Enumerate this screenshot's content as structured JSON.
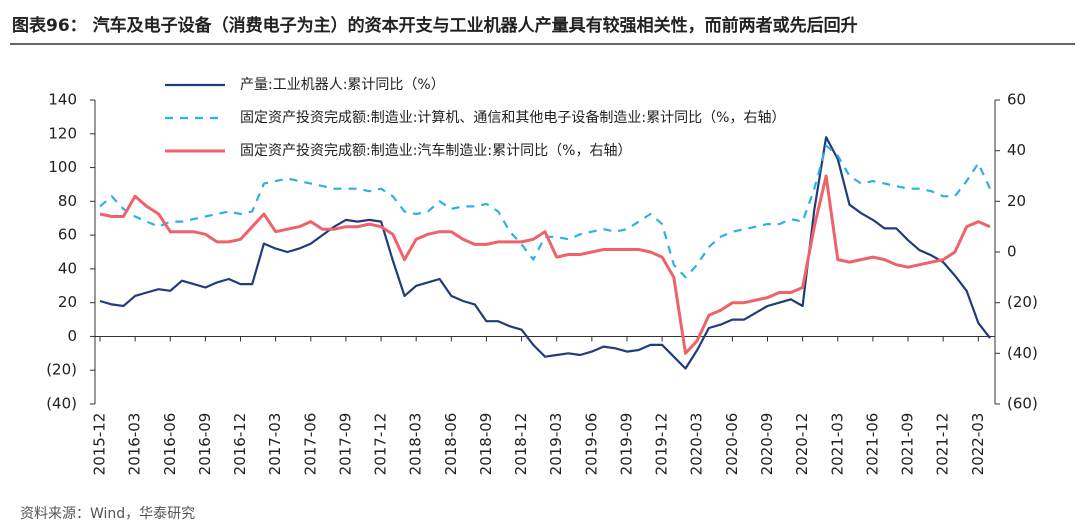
{
  "chart_data": {
    "type": "line",
    "title": "图表96： 汽车及电子设备（消费电子为主）的资本开支与工业机器人产量具有较强相关性，而前两者或先后回升",
    "source": "资料来源：Wind，华泰研究",
    "categories": [
      "2015-12",
      null,
      null,
      "2016-03",
      null,
      null,
      "2016-06",
      null,
      null,
      "2016-09",
      null,
      null,
      "2016-12",
      null,
      null,
      "2017-03",
      null,
      null,
      "2017-06",
      null,
      null,
      "2017-09",
      null,
      null,
      "2017-12",
      null,
      null,
      "2018-03",
      null,
      null,
      "2018-06",
      null,
      null,
      "2018-09",
      null,
      null,
      "2018-12",
      null,
      null,
      "2019-03",
      null,
      null,
      "2019-06",
      null,
      null,
      "2019-09",
      null,
      null,
      "2019-12",
      null,
      null,
      "2020-03",
      null,
      null,
      "2020-06",
      null,
      null,
      "2020-09",
      null,
      null,
      "2020-12",
      null,
      null,
      "2021-03",
      null,
      null,
      "2021-06",
      null,
      null,
      "2021-09",
      null,
      null,
      "2021-12",
      null,
      null,
      "2022-03",
      null
    ],
    "series": [
      {
        "name": "产量:工业机器人:累计同比（%）",
        "color": "#1f3d7a",
        "dash": false,
        "values": [
          21,
          19,
          18,
          24,
          26,
          28,
          27,
          33,
          31,
          29,
          32,
          34,
          31,
          31,
          55,
          52,
          50,
          52,
          55,
          60,
          65,
          69,
          68,
          69,
          68,
          45,
          24,
          30,
          32,
          34,
          24,
          21,
          19,
          9,
          9,
          6,
          4,
          -5,
          -12,
          -11,
          -10,
          -11,
          -9,
          -6,
          -7,
          -9,
          -8,
          -5,
          -5,
          -12,
          -19,
          -8,
          5,
          7,
          10,
          10,
          14,
          18,
          20,
          22,
          18,
          75,
          118,
          105,
          78,
          73,
          69,
          64,
          64,
          57,
          51,
          48,
          44,
          36,
          27,
          8,
          -1
        ]
      },
      {
        "name": "固定资产投资完成额:制造业:计算机、通信和其他电子设备制造业:累计同比（%，右轴）",
        "color": "#2eb0e6",
        "dash": true,
        "axis": "y2",
        "values": [
          18,
          22,
          17,
          14,
          12,
          10,
          12,
          12,
          13,
          14,
          15,
          16,
          15,
          16,
          27,
          28,
          29,
          28,
          27,
          26,
          25,
          25,
          25,
          24,
          25,
          22,
          16,
          15,
          16,
          20,
          17,
          18,
          18,
          19,
          16,
          8,
          3,
          -3,
          6,
          6,
          5,
          7,
          8,
          9,
          8,
          9,
          12,
          15,
          11,
          -5,
          -10,
          -5,
          2,
          6,
          8,
          9,
          10,
          11,
          11,
          13,
          12,
          25,
          42,
          38,
          30,
          27,
          28,
          27,
          26,
          25,
          25,
          24,
          22,
          22,
          28,
          35,
          25
        ]
      },
      {
        "name": "固定资产投资完成额:制造业:汽车制造业:累计同比（%，右轴）",
        "color": "#f0626a",
        "dash": false,
        "axis": "y2",
        "values": [
          15,
          14,
          14,
          22,
          18,
          15,
          8,
          8,
          8,
          7,
          4,
          4,
          5,
          10,
          15,
          8,
          9,
          10,
          12,
          9,
          9,
          10,
          10,
          11,
          10,
          7,
          -3,
          5,
          7,
          8,
          8,
          5,
          3,
          3,
          4,
          4,
          4,
          5,
          8,
          -2,
          -1,
          -1,
          0,
          1,
          1,
          1,
          1,
          0,
          -2,
          -10,
          -40,
          -35,
          -25,
          -23,
          -20,
          -20,
          -19,
          -18,
          -16,
          -16,
          -14,
          10,
          30,
          -3,
          -4,
          -3,
          -2,
          -3,
          -5,
          -6,
          -5,
          -4,
          -3,
          0,
          10,
          12,
          10
        ]
      }
    ],
    "ylim": [
      -40,
      140
    ],
    "yticks": [
      140,
      120,
      100,
      80,
      60,
      40,
      20,
      0,
      {
        "value": -20,
        "label": "(20)"
      },
      {
        "value": -40,
        "label": "(40)"
      }
    ],
    "y2lim": [
      -60,
      60
    ],
    "y2ticks": [
      60,
      40,
      20,
      0,
      {
        "value": -20,
        "label": "(20)"
      },
      {
        "value": -40,
        "label": "(40)"
      },
      {
        "value": -60,
        "label": "(60)"
      }
    ]
  }
}
